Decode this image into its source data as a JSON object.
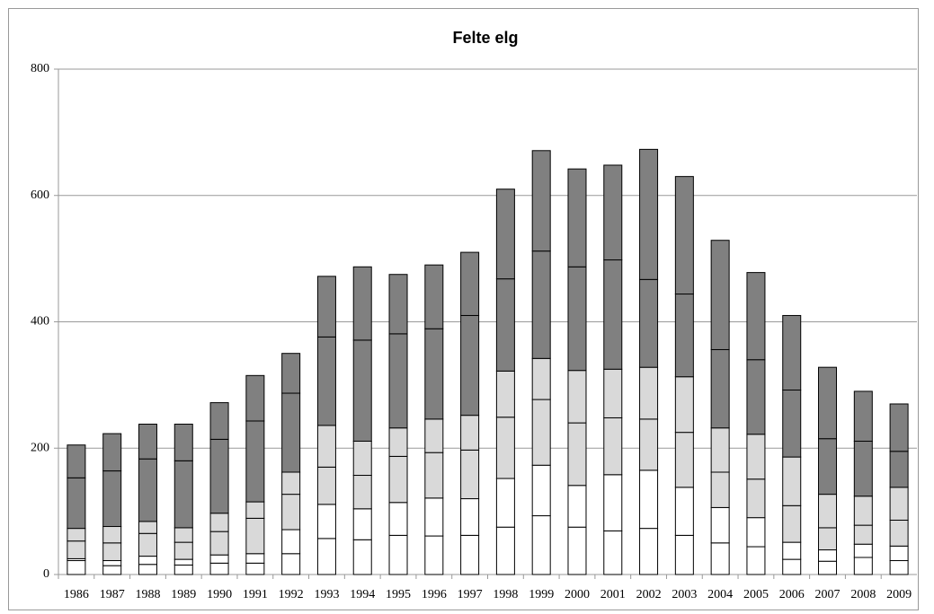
{
  "chart_data": {
    "type": "stacked-bar",
    "title": "Felte elg",
    "categories": [
      "1986",
      "1987",
      "1988",
      "1989",
      "1990",
      "1991",
      "1992",
      "1993",
      "1994",
      "1995",
      "1996",
      "1997",
      "1998",
      "1999",
      "2000",
      "2001",
      "2002",
      "2003",
      "2004",
      "2005",
      "2006",
      "2007",
      "2008",
      "2009"
    ],
    "series": [
      {
        "color": "#ffffff",
        "values": [
          22,
          14,
          16,
          15,
          18,
          18,
          33,
          57,
          55,
          62,
          61,
          62,
          75,
          93,
          75,
          69,
          73,
          62,
          50,
          44,
          24,
          21,
          27,
          22
        ]
      },
      {
        "color": "#ffffff",
        "values": [
          3,
          8,
          13,
          9,
          13,
          15,
          38,
          54,
          49,
          52,
          60,
          58,
          77,
          80,
          66,
          89,
          92,
          76,
          56,
          46,
          27,
          18,
          21,
          23
        ]
      },
      {
        "color": "#d9d9d9",
        "values": [
          28,
          28,
          36,
          27,
          37,
          56,
          56,
          59,
          53,
          73,
          72,
          77,
          97,
          104,
          99,
          90,
          81,
          87,
          56,
          61,
          58,
          35,
          30,
          41
        ]
      },
      {
        "color": "#d9d9d9",
        "values": [
          20,
          26,
          19,
          23,
          29,
          26,
          35,
          66,
          54,
          45,
          53,
          55,
          73,
          65,
          83,
          77,
          82,
          88,
          70,
          71,
          77,
          53,
          46,
          52
        ]
      },
      {
        "color": "#808080",
        "values": [
          80,
          88,
          99,
          106,
          117,
          128,
          125,
          140,
          160,
          149,
          143,
          158,
          146,
          170,
          164,
          173,
          139,
          131,
          124,
          118,
          106,
          88,
          87,
          57
        ]
      },
      {
        "color": "#808080",
        "values": [
          52,
          59,
          55,
          58,
          58,
          72,
          63,
          96,
          116,
          94,
          101,
          100,
          142,
          159,
          155,
          150,
          206,
          186,
          173,
          138,
          118,
          113,
          79,
          75
        ]
      }
    ],
    "ylim": [
      0,
      800
    ],
    "yticks": [
      0,
      200,
      400,
      600,
      800
    ],
    "grid": true
  }
}
